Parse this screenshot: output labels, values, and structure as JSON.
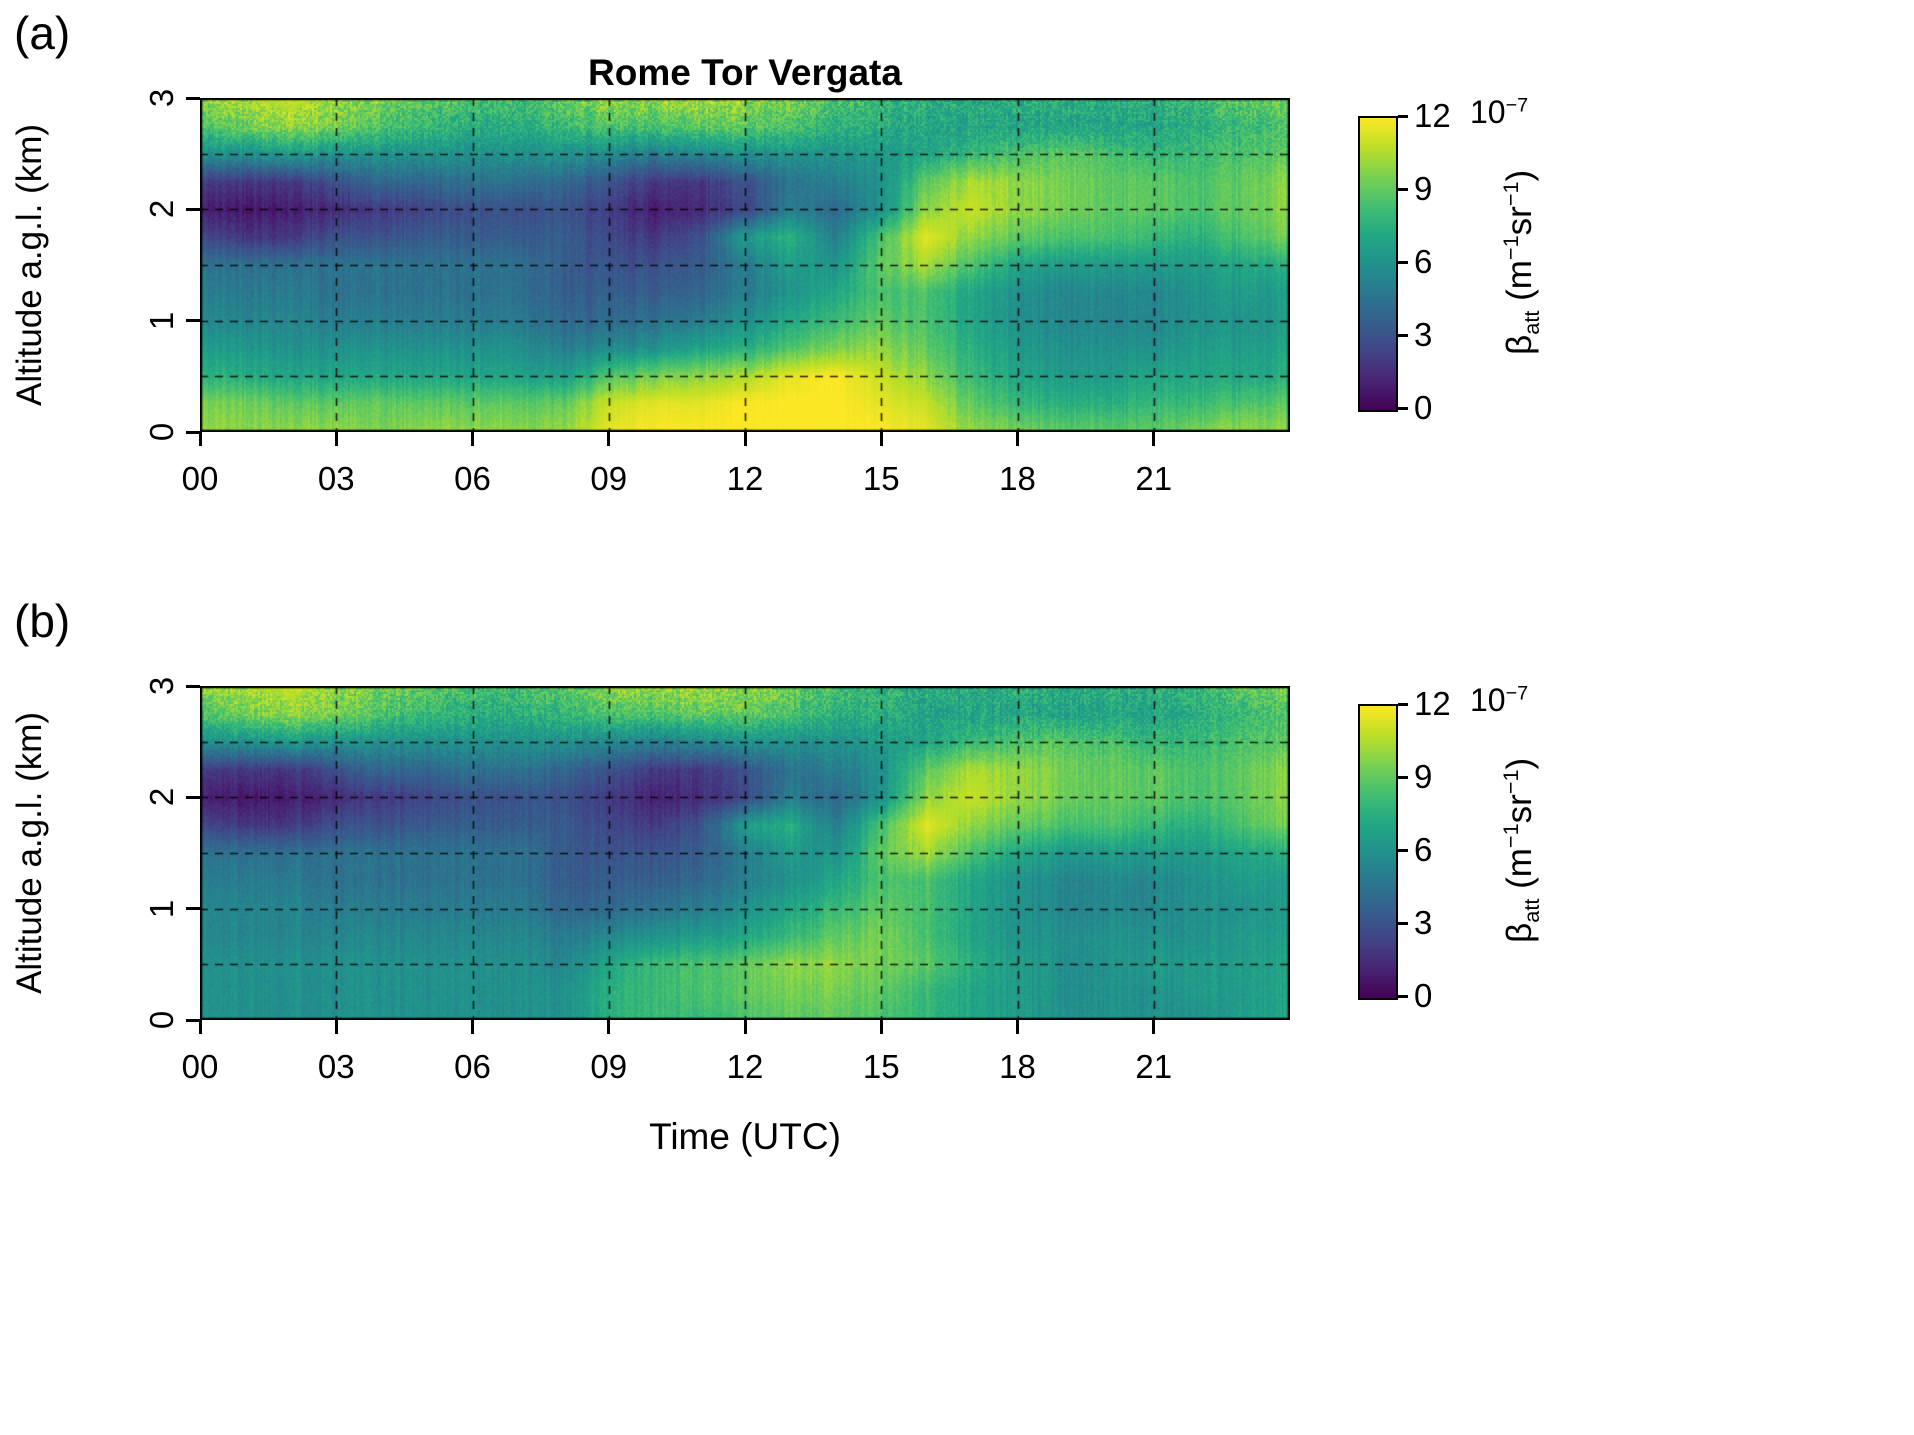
{
  "figure": {
    "panels": [
      {
        "tag": "(a)",
        "title": "Rome Tor Vergata",
        "ylabel": "Altitude a.g.l. (km)"
      },
      {
        "tag": "(b)",
        "ylabel": "Altitude a.g.l. (km)",
        "xlabel": "Time (UTC)"
      }
    ],
    "x_tick_labels": [
      "00",
      "03",
      "06",
      "09",
      "12",
      "15",
      "18",
      "21"
    ],
    "y_tick_labels": [
      "0",
      "1",
      "2",
      "3"
    ],
    "colorbar": {
      "tick_labels": [
        "0",
        "3",
        "6",
        "9",
        "12"
      ],
      "multiplier_base": "10",
      "multiplier_exp": "−7",
      "label": {
        "beta": "β",
        "sub": "att",
        "unit_open": " (m",
        "exp1": "−1",
        "unit_mid": "sr",
        "exp2": "−1",
        "unit_close": ")"
      }
    }
  },
  "chart_data": {
    "type": "heatmap",
    "title": "Rome Tor Vergata",
    "xlabel": "Time (UTC)",
    "ylabel": "Altitude a.g.l. (km)",
    "x_range_hours": [
      0,
      24
    ],
    "x_tick_hours": [
      0,
      3,
      6,
      9,
      12,
      15,
      18,
      21
    ],
    "altitude_range_km": [
      0,
      3
    ],
    "y_tick_km": [
      0,
      1,
      2,
      3
    ],
    "value_label": "attenuated backscatter β_att (10⁻⁷ m⁻¹ sr⁻¹)",
    "value_range": [
      0,
      12
    ],
    "colorbar_tick_values": [
      0,
      3,
      6,
      9,
      12
    ],
    "colormap": "viridis",
    "viridis_stops": [
      "#440154",
      "#482475",
      "#414487",
      "#355f8d",
      "#2a788e",
      "#21918c",
      "#22a884",
      "#44bf70",
      "#7ad151",
      "#bddf26",
      "#fde725"
    ],
    "grid_dashed_x_hours": [
      3,
      6,
      9,
      12,
      15,
      18,
      21
    ],
    "grid_dashed_z_km": [
      0.5,
      1.0,
      1.5,
      2.0,
      2.5
    ],
    "grid_time_hours": [
      0,
      1,
      2,
      3,
      4,
      5,
      6,
      7,
      8,
      9,
      10,
      11,
      12,
      13,
      14,
      15,
      16,
      17,
      18,
      19,
      20,
      21,
      22,
      23,
      24
    ],
    "grid_altitude_km": [
      0,
      0.25,
      0.5,
      0.75,
      1.0,
      1.25,
      1.5,
      1.75,
      2.0,
      2.25,
      2.5,
      2.75,
      3.0
    ],
    "panels": [
      {
        "name": "a",
        "values_by_altitude": [
          [
            10,
            10,
            10,
            10,
            9.5,
            10,
            10,
            10,
            10,
            11.5,
            12,
            12,
            12,
            12,
            12,
            12,
            11.5,
            10,
            9.5,
            9,
            9,
            9,
            9.5,
            10,
            10
          ],
          [
            9.5,
            9.5,
            9,
            9,
            9,
            9,
            9,
            9,
            9,
            11,
            11.5,
            11.5,
            12,
            12,
            12,
            11.5,
            11,
            9,
            8,
            7.5,
            7.5,
            8,
            8,
            8.5,
            9
          ],
          [
            7.5,
            7.5,
            7,
            7,
            7,
            7,
            7,
            7,
            6.5,
            8.5,
            9.5,
            10,
            10.5,
            11.5,
            12,
            11,
            10,
            8,
            7,
            6.5,
            6.5,
            7,
            7,
            7,
            7.5
          ],
          [
            6.5,
            6.5,
            6,
            6,
            6,
            6,
            6,
            6,
            5,
            5.5,
            6,
            7,
            7.5,
            8.5,
            9.5,
            10,
            9,
            7.5,
            6.5,
            6,
            6,
            6,
            6.5,
            6.5,
            7
          ],
          [
            5.5,
            5.5,
            5.5,
            5,
            5,
            5,
            5,
            5,
            4,
            4,
            4.5,
            5,
            6,
            7,
            8,
            9,
            8.5,
            7,
            6,
            5.5,
            5.5,
            5.5,
            6,
            6,
            6.5
          ],
          [
            5,
            5,
            5,
            4.5,
            4.5,
            4.5,
            4.5,
            4.5,
            3.5,
            3.5,
            3.5,
            4,
            5,
            6,
            7,
            8.5,
            8.5,
            7,
            6,
            5.5,
            5.5,
            5.5,
            6,
            6.5,
            6.5
          ],
          [
            4.5,
            4.5,
            4.5,
            4.5,
            4.5,
            4.5,
            4.5,
            4.5,
            3.5,
            3,
            3,
            3.5,
            5,
            6.5,
            6,
            9,
            10.5,
            8.5,
            7,
            6.5,
            6.5,
            6.5,
            6.5,
            7,
            7.5
          ],
          [
            2.5,
            2,
            2,
            3,
            3,
            3.5,
            3.5,
            3.5,
            3.5,
            2.5,
            2,
            3,
            6.5,
            7.5,
            5,
            8.5,
            11.5,
            10,
            9,
            8.5,
            8.5,
            8,
            7.5,
            8.5,
            9.5
          ],
          [
            1,
            0.8,
            1,
            1.5,
            2,
            2.5,
            3,
            3,
            3,
            2,
            1,
            1.5,
            2.5,
            5,
            4,
            6,
            10,
            11,
            10,
            9.5,
            9,
            9,
            8.5,
            9,
            10
          ],
          [
            2,
            2,
            2,
            3,
            4,
            4,
            4.5,
            4.5,
            4,
            3,
            2,
            2,
            3,
            4.5,
            5,
            6,
            9,
            10.5,
            10,
            9.5,
            9,
            9,
            8.5,
            9,
            10
          ],
          [
            6,
            6,
            6.5,
            6,
            6,
            6,
            6,
            6,
            6,
            5.5,
            5,
            5.5,
            6,
            6,
            6,
            6.5,
            7,
            8,
            8.5,
            9,
            8.5,
            8,
            8,
            8.5,
            9
          ],
          [
            8.5,
            9.5,
            10,
            9.5,
            8.5,
            8,
            7.5,
            7.5,
            8,
            8.5,
            8.5,
            9,
            9,
            8.5,
            7.5,
            7.5,
            7,
            7,
            7,
            7,
            7,
            7,
            7.5,
            8,
            8.5
          ],
          [
            10,
            10.5,
            11,
            10,
            9.5,
            9,
            8.5,
            8.5,
            9,
            10,
            10,
            10.5,
            10,
            9.5,
            8.5,
            8,
            7.5,
            7.5,
            7.5,
            7.5,
            7.5,
            7.5,
            8,
            9,
            9.5
          ]
        ]
      },
      {
        "name": "b",
        "values_by_altitude": [
          [
            6,
            6,
            6,
            6,
            6,
            6,
            6,
            6,
            6,
            7.5,
            8,
            8,
            8.5,
            9,
            9,
            8.5,
            8,
            7,
            6.5,
            6,
            6,
            6,
            6,
            6.5,
            7
          ],
          [
            6,
            6,
            6,
            6,
            6,
            6,
            6,
            6,
            6,
            7.5,
            8,
            8.5,
            9,
            9.5,
            9.5,
            9,
            8,
            7,
            6.5,
            6,
            6,
            6,
            6.5,
            6.5,
            7
          ],
          [
            6,
            6,
            6,
            6,
            6,
            6,
            6,
            6,
            5.5,
            7,
            8,
            8.5,
            9,
            10,
            10,
            9.5,
            9,
            7.5,
            6.5,
            6,
            6,
            6.5,
            6.5,
            6.5,
            7
          ],
          [
            5.5,
            5.5,
            5.5,
            5.5,
            5.5,
            5.5,
            5.5,
            5.5,
            5,
            5.5,
            6,
            6.5,
            7,
            8,
            9,
            9.5,
            8.5,
            7,
            6,
            6,
            6,
            6,
            6,
            6.5,
            6.5
          ],
          [
            5.5,
            5.5,
            5.5,
            5,
            5,
            5,
            5,
            5,
            4,
            4,
            4.5,
            5,
            6,
            7,
            8,
            9,
            8.5,
            7,
            6,
            5.5,
            5.5,
            5.5,
            6,
            6,
            6.5
          ],
          [
            5,
            5,
            5,
            4.5,
            4.5,
            4.5,
            4.5,
            4.5,
            3.5,
            3.5,
            3.5,
            4,
            5,
            6,
            7,
            8.5,
            8.5,
            7,
            6,
            5.5,
            5.5,
            5.5,
            6,
            6.5,
            6.5
          ],
          [
            4.5,
            4.5,
            4.5,
            4.5,
            4.5,
            4.5,
            4.5,
            4.5,
            3.5,
            3,
            3,
            3.5,
            5,
            6.5,
            6,
            9,
            10.5,
            8.5,
            7,
            6.5,
            6.5,
            6.5,
            6.5,
            7,
            7.5
          ],
          [
            2.5,
            2,
            2,
            3,
            3,
            3.5,
            3.5,
            3.5,
            3.5,
            2.5,
            2,
            3,
            6.5,
            7.5,
            5,
            8.5,
            11.5,
            10,
            9,
            8.5,
            8.5,
            8,
            7.5,
            8.5,
            9.5
          ],
          [
            1,
            0.8,
            1,
            1.5,
            2,
            2.5,
            3,
            3,
            3,
            2,
            1,
            1.5,
            2.5,
            5,
            4,
            6,
            10,
            11,
            10,
            9.5,
            9,
            9,
            8.5,
            9,
            10
          ],
          [
            2,
            2,
            2,
            3,
            4,
            4,
            4.5,
            4.5,
            4,
            3,
            2,
            2,
            3,
            4.5,
            5,
            6,
            9,
            10.5,
            10,
            9.5,
            9,
            9,
            8.5,
            9,
            10
          ],
          [
            6,
            6,
            6.5,
            6,
            6,
            6,
            6,
            6,
            6,
            5.5,
            5,
            5.5,
            6,
            6,
            6,
            6.5,
            7,
            8,
            8.5,
            9,
            8.5,
            8,
            8,
            8.5,
            9
          ],
          [
            8.5,
            9.5,
            10,
            9.5,
            8.5,
            8,
            7.5,
            7.5,
            8,
            8.5,
            8.5,
            9,
            9,
            8.5,
            7.5,
            7.5,
            7,
            7,
            7,
            7,
            7,
            7,
            7.5,
            8,
            8.5
          ],
          [
            10,
            10.5,
            11,
            10,
            9.5,
            9,
            8.5,
            8.5,
            9,
            10,
            10,
            10.5,
            10,
            9.5,
            8.5,
            8,
            7.5,
            7.5,
            7.5,
            7.5,
            7.5,
            7.5,
            8,
            9,
            9.5
          ]
        ]
      }
    ]
  }
}
